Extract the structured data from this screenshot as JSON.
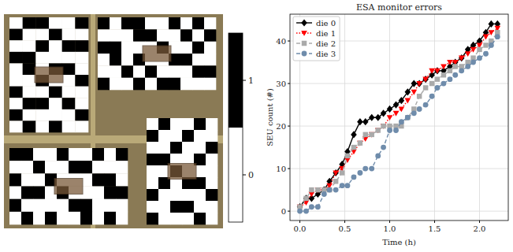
{
  "chart_data": [
    {
      "type": "heatmap",
      "panels": [
        {
          "cells": [
            [
              0,
              1,
              1,
              0,
              0,
              1
            ],
            [
              1,
              0,
              0,
              1,
              0,
              0
            ],
            [
              0,
              0,
              1,
              0,
              1,
              1
            ],
            [
              1,
              1,
              0,
              0,
              0,
              0
            ],
            [
              0,
              1,
              0,
              1,
              1,
              0
            ],
            [
              0,
              0,
              1,
              0,
              0,
              1
            ],
            [
              1,
              0,
              0,
              1,
              0,
              0
            ],
            [
              0,
              1,
              1,
              0,
              1,
              0
            ],
            [
              1,
              0,
              0,
              0,
              0,
              1
            ],
            [
              0,
              1,
              0,
              1,
              0,
              0
            ]
          ]
        },
        {
          "cells": [
            [
              1,
              0,
              1,
              1,
              0,
              0,
              1,
              0,
              1,
              0
            ],
            [
              0,
              0,
              0,
              1,
              1,
              0,
              0,
              1,
              0,
              1
            ],
            [
              1,
              1,
              0,
              0,
              0,
              1,
              0,
              0,
              1,
              0
            ],
            [
              0,
              1,
              0,
              1,
              0,
              0,
              1,
              1,
              0,
              0
            ],
            [
              0,
              0,
              1,
              0,
              1,
              0,
              0,
              0,
              1,
              1
            ],
            [
              1,
              0,
              0,
              1,
              0,
              1,
              1,
              0,
              0,
              0
            ]
          ]
        },
        {
          "cells": [
            [
              1,
              1,
              0,
              0,
              1,
              0,
              0,
              1,
              0,
              1
            ],
            [
              0,
              0,
              1,
              0,
              0,
              1,
              1,
              0,
              0,
              0
            ],
            [
              1,
              0,
              0,
              1,
              0,
              0,
              0,
              1,
              1,
              0
            ],
            [
              0,
              1,
              1,
              0,
              1,
              0,
              0,
              0,
              1,
              1
            ],
            [
              1,
              0,
              0,
              0,
              0,
              1,
              1,
              0,
              0,
              0
            ],
            [
              0,
              1,
              0,
              1,
              0,
              0,
              1,
              0,
              1,
              0
            ]
          ]
        },
        {
          "cells": [
            [
              0,
              1,
              0,
              0,
              1,
              0
            ],
            [
              1,
              0,
              0,
              1,
              0,
              0
            ],
            [
              0,
              0,
              1,
              0,
              0,
              1
            ],
            [
              1,
              1,
              0,
              0,
              1,
              0
            ],
            [
              0,
              0,
              1,
              0,
              0,
              0
            ],
            [
              0,
              1,
              0,
              1,
              1,
              0
            ],
            [
              1,
              0,
              0,
              0,
              0,
              1
            ],
            [
              0,
              0,
              1,
              1,
              0,
              0
            ],
            [
              1,
              0,
              0,
              0,
              1,
              0
            ]
          ]
        }
      ],
      "colorbar_range": [
        -0.5,
        1.5
      ],
      "colorbar_ticks": [
        0,
        1
      ]
    },
    {
      "type": "line",
      "title": "ESA monitor errors",
      "x_label": "Time (h)",
      "y_label": "SEU count (#)",
      "x": [
        0,
        0.07,
        0.13,
        0.2,
        0.27,
        0.33,
        0.4,
        0.47,
        0.53,
        0.6,
        0.67,
        0.73,
        0.8,
        0.87,
        0.93,
        1.0,
        1.07,
        1.13,
        1.2,
        1.27,
        1.33,
        1.4,
        1.47,
        1.53,
        1.6,
        1.67,
        1.73,
        1.8,
        1.87,
        1.93,
        2.0,
        2.07,
        2.13,
        2.2
      ],
      "series": [
        {
          "name": "die 0",
          "color": "#000000",
          "marker": "diamond",
          "line_style": "solid",
          "values": [
            1,
            3,
            3,
            4,
            5,
            7,
            9,
            11,
            14,
            18,
            21,
            21,
            22,
            22,
            23,
            24,
            25,
            26,
            28,
            30,
            30,
            31,
            32,
            33,
            33,
            34,
            35,
            36,
            38,
            39,
            40,
            42,
            44,
            44
          ]
        },
        {
          "name": "die 1",
          "color": "#ff0000",
          "marker": "triangle-down",
          "line_style": "dotted",
          "values": [
            1,
            2,
            4,
            5,
            5,
            6,
            9,
            10,
            12,
            14,
            16,
            17,
            18,
            19,
            20,
            22,
            23,
            24,
            26,
            28,
            30,
            31,
            33,
            33,
            34,
            35,
            35,
            36,
            37,
            38,
            39,
            41,
            42,
            43
          ]
        },
        {
          "name": "die 2",
          "color": "#aaaaaa",
          "marker": "square",
          "line_style": "dashed",
          "values": [
            1,
            3,
            5,
            5,
            5,
            5,
            7,
            9,
            13,
            15,
            16,
            18,
            18,
            19,
            20,
            20,
            20,
            20,
            22,
            24,
            27,
            29,
            30,
            31,
            32,
            33,
            34,
            34,
            35,
            36,
            38,
            39,
            40,
            42
          ]
        },
        {
          "name": "die 3",
          "color": "#6f8cab",
          "marker": "circle",
          "line_style": "dashed",
          "values": [
            0,
            0,
            1,
            1,
            4,
            5,
            5,
            6,
            6,
            8,
            9,
            10,
            10,
            13,
            15,
            19,
            19,
            21,
            22,
            23,
            24,
            25,
            27,
            29,
            30,
            31,
            32,
            33,
            34,
            35,
            36,
            37,
            39,
            41
          ]
        }
      ],
      "xlim": [
        -0.11,
        2.32
      ],
      "ylim": [
        -2.2,
        46.3
      ],
      "xticks": [
        {
          "value": 0,
          "label": "0.0"
        },
        {
          "value": 0.5,
          "label": "0.5"
        },
        {
          "value": 1,
          "label": "1.0"
        },
        {
          "value": 1.5,
          "label": "1.5"
        },
        {
          "value": 2,
          "label": "2.0"
        }
      ],
      "yticks": [
        0,
        10,
        20,
        30,
        40
      ],
      "grid": true,
      "legend": "upper left"
    }
  ]
}
